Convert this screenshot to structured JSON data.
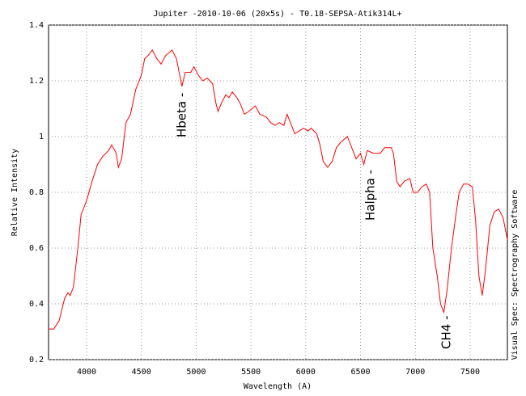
{
  "chart_data": {
    "type": "line",
    "title": "Jupiter -2010-10-06 (20x5s) - T0.18-SEPSA-Atik314L+",
    "x_label": "Wavelength (A)",
    "y_label": "Relative Intensity",
    "side_note": "Visual Spec: Spectrography Software",
    "annotations": [
      "Hbeta -",
      "Halpha -",
      "CH4 -"
    ],
    "xlim": [
      3653,
      7840
    ],
    "ylim": [
      0.2,
      1.4
    ],
    "xticks": [
      4000,
      4500,
      5000,
      5500,
      6000,
      6500,
      7000,
      7500
    ],
    "yticks": [
      0.2,
      0.4,
      0.6,
      0.8,
      1,
      1.2,
      1.4
    ],
    "grid": true,
    "x": [
      3650,
      3700,
      3750,
      3800,
      3830,
      3850,
      3880,
      3920,
      3950,
      4000,
      4050,
      4100,
      4150,
      4200,
      4230,
      4270,
      4290,
      4320,
      4360,
      4400,
      4450,
      4500,
      4530,
      4560,
      4600,
      4640,
      4680,
      4720,
      4780,
      4820,
      4850,
      4870,
      4900,
      4950,
      4980,
      5020,
      5060,
      5100,
      5150,
      5180,
      5200,
      5230,
      5270,
      5300,
      5330,
      5370,
      5400,
      5440,
      5480,
      5540,
      5580,
      5640,
      5680,
      5720,
      5760,
      5800,
      5830,
      5860,
      5900,
      5940,
      5980,
      6020,
      6050,
      6100,
      6130,
      6160,
      6200,
      6240,
      6280,
      6320,
      6380,
      6420,
      6460,
      6500,
      6530,
      6560,
      6620,
      6680,
      6720,
      6780,
      6800,
      6830,
      6860,
      6900,
      6950,
      6980,
      7020,
      7060,
      7100,
      7130,
      7160,
      7200,
      7230,
      7260,
      7290,
      7330,
      7370,
      7400,
      7440,
      7480,
      7520,
      7550,
      7580,
      7610,
      7640,
      7680,
      7720,
      7760,
      7800,
      7840
    ],
    "series": [
      {
        "name": "Jupiter",
        "color": "#ff0000",
        "values": [
          0.31,
          0.31,
          0.34,
          0.42,
          0.44,
          0.43,
          0.46,
          0.6,
          0.72,
          0.77,
          0.84,
          0.9,
          0.93,
          0.95,
          0.97,
          0.94,
          0.89,
          0.92,
          1.05,
          1.08,
          1.17,
          1.22,
          1.28,
          1.29,
          1.31,
          1.28,
          1.26,
          1.29,
          1.31,
          1.28,
          1.22,
          1.18,
          1.23,
          1.23,
          1.25,
          1.22,
          1.2,
          1.21,
          1.19,
          1.12,
          1.09,
          1.12,
          1.15,
          1.14,
          1.16,
          1.14,
          1.12,
          1.08,
          1.09,
          1.11,
          1.08,
          1.07,
          1.05,
          1.04,
          1.05,
          1.04,
          1.08,
          1.05,
          1.01,
          1.02,
          1.03,
          1.02,
          1.03,
          1.01,
          0.97,
          0.91,
          0.89,
          0.91,
          0.96,
          0.98,
          1.0,
          0.96,
          0.92,
          0.94,
          0.9,
          0.95,
          0.94,
          0.94,
          0.96,
          0.96,
          0.94,
          0.84,
          0.82,
          0.84,
          0.85,
          0.8,
          0.8,
          0.82,
          0.83,
          0.8,
          0.6,
          0.5,
          0.4,
          0.37,
          0.45,
          0.6,
          0.72,
          0.8,
          0.83,
          0.83,
          0.82,
          0.7,
          0.5,
          0.43,
          0.52,
          0.68,
          0.73,
          0.74,
          0.71,
          0.63
        ]
      }
    ]
  }
}
